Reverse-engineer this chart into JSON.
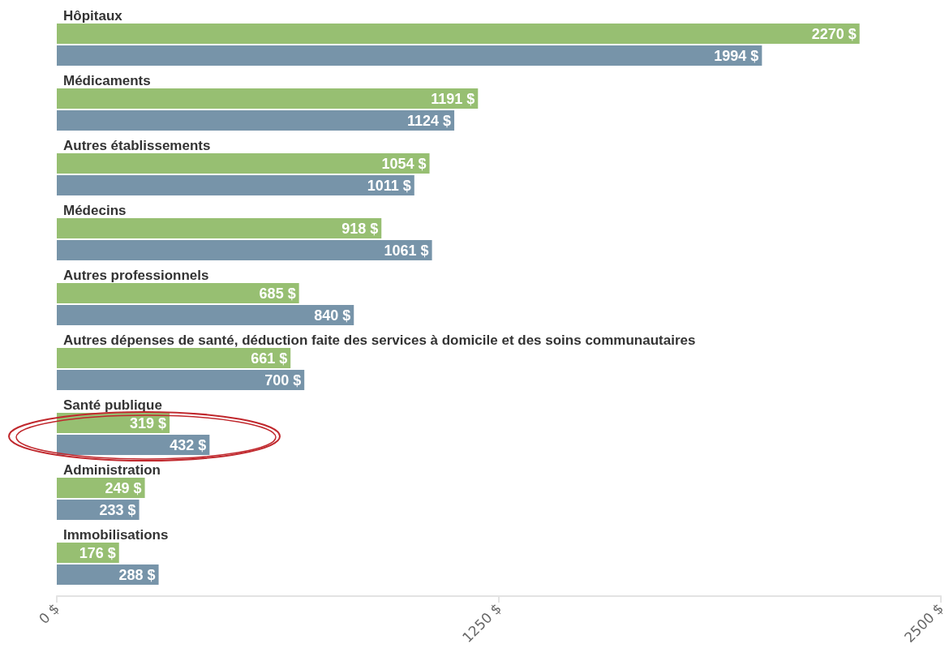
{
  "chart_data": {
    "type": "bar",
    "orientation": "horizontal",
    "categories": [
      "Hôpitaux",
      "Médicaments",
      "Autres établissements",
      "Médecins",
      "Autres professionnels",
      "Autres dépenses de santé, déduction faite des services à domicile et des soins communautaires",
      "Santé publique",
      "Administration",
      "Immobilisations"
    ],
    "series": [
      {
        "color": "#97bf72",
        "values": [
          2270,
          1191,
          1054,
          918,
          685,
          661,
          319,
          249,
          176
        ],
        "value_labels": [
          "2270 $",
          "1191 $",
          "1054 $",
          "918 $",
          "685 $",
          "661 $",
          "319 $",
          "249 $",
          "176 $"
        ]
      },
      {
        "color": "#7794a9",
        "values": [
          1994,
          1124,
          1011,
          1061,
          840,
          700,
          432,
          233,
          288
        ],
        "value_labels": [
          "1994 $",
          "1124 $",
          "1011 $",
          "1061 $",
          "840 $",
          "700 $",
          "432 $",
          "233 $",
          "288 $"
        ]
      }
    ],
    "xlim": [
      0,
      2500
    ],
    "xticks": [
      {
        "value": 0,
        "label": "0 $"
      },
      {
        "value": 1250,
        "label": "1250 $"
      },
      {
        "value": 2500,
        "label": "2500 $"
      }
    ],
    "grid": false
  }
}
